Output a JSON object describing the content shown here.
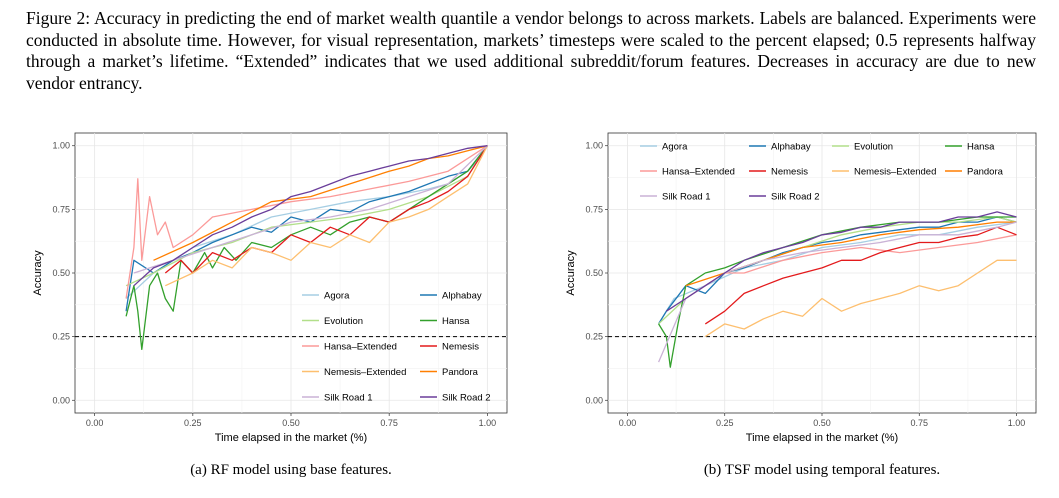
{
  "caption": "Figure 2: Accuracy in predicting the end of market wealth quantile a vendor belongs to across markets. Labels are balanced. Experiments were conducted in absolute time. However, for visual representation, markets’ timesteps were scaled to the percent elapsed; 0.5 represents halfway through a market’s lifetime. “Extended” indicates that we used additional subreddit/forum features. Decreases in accuracy are due to new vendor entrancy.",
  "colors": {
    "Agora": "#a6cee3",
    "Alphabay": "#1f78b4",
    "Evolution": "#b2df8a",
    "Hansa": "#33a02c",
    "Hansa–Extended": "#fb9a99",
    "Nemesis": "#e31a1c",
    "Nemesis–Extended": "#fdbf6f",
    "Pandora": "#ff7f00",
    "Silk Road 1": "#cab2d6",
    "Silk Road 2": "#6a3d9a"
  },
  "chart_data": [
    {
      "type": "line",
      "subcaption": "(a) RF model using base features.",
      "xlabel": "Time elapsed in the market (%)",
      "ylabel": "Accuracy",
      "xlim": [
        0,
        1
      ],
      "ylim": [
        0,
        1
      ],
      "xticks": [
        "0.00",
        "0.25",
        "0.50",
        "0.75",
        "1.00"
      ],
      "yticks": [
        "0.00",
        "0.25",
        "0.50",
        "0.75",
        "1.00"
      ],
      "grid": true,
      "reference_line": {
        "y": 0.25,
        "style": "dashed"
      },
      "legend_position": "bottom-right",
      "legend": [
        "Agora",
        "Alphabay",
        "Evolution",
        "Hansa",
        "Hansa–Extended",
        "Nemesis",
        "Nemesis–Extended",
        "Pandora",
        "Silk Road 1",
        "Silk Road 2"
      ],
      "series": [
        {
          "name": "Agora",
          "x": [
            0.08,
            0.15,
            0.25,
            0.35,
            0.45,
            0.55,
            0.65,
            0.75,
            0.85,
            0.9,
            0.95,
            0.98,
            1.0
          ],
          "y": [
            0.4,
            0.5,
            0.6,
            0.65,
            0.72,
            0.75,
            0.78,
            0.8,
            0.83,
            0.85,
            0.9,
            0.95,
            1.0
          ]
        },
        {
          "name": "Alphabay",
          "x": [
            0.08,
            0.1,
            0.15,
            0.2,
            0.25,
            0.3,
            0.35,
            0.4,
            0.45,
            0.5,
            0.55,
            0.6,
            0.65,
            0.7,
            0.75,
            0.8,
            0.85,
            0.9,
            0.95,
            1.0
          ],
          "y": [
            0.35,
            0.55,
            0.5,
            0.55,
            0.58,
            0.62,
            0.65,
            0.68,
            0.66,
            0.72,
            0.7,
            0.75,
            0.74,
            0.78,
            0.8,
            0.82,
            0.85,
            0.88,
            0.9,
            1.0
          ]
        },
        {
          "name": "Evolution",
          "x": [
            0.08,
            0.15,
            0.25,
            0.35,
            0.45,
            0.55,
            0.65,
            0.75,
            0.85,
            0.95,
            1.0
          ],
          "y": [
            0.45,
            0.5,
            0.58,
            0.62,
            0.68,
            0.7,
            0.72,
            0.75,
            0.8,
            0.88,
            1.0
          ]
        },
        {
          "name": "Hansa",
          "x": [
            0.08,
            0.1,
            0.11,
            0.12,
            0.14,
            0.16,
            0.18,
            0.2,
            0.22,
            0.25,
            0.28,
            0.3,
            0.33,
            0.36,
            0.4,
            0.45,
            0.5,
            0.55,
            0.6,
            0.65,
            0.7,
            0.75,
            0.8,
            0.85,
            0.9,
            0.95,
            1.0
          ],
          "y": [
            0.33,
            0.45,
            0.35,
            0.2,
            0.45,
            0.5,
            0.4,
            0.35,
            0.55,
            0.5,
            0.58,
            0.52,
            0.6,
            0.55,
            0.62,
            0.6,
            0.65,
            0.68,
            0.65,
            0.7,
            0.72,
            0.7,
            0.75,
            0.8,
            0.85,
            0.9,
            1.0
          ]
        },
        {
          "name": "Hansa–Extended",
          "x": [
            0.08,
            0.1,
            0.11,
            0.12,
            0.14,
            0.16,
            0.18,
            0.2,
            0.25,
            0.3,
            0.4,
            0.5,
            0.6,
            0.7,
            0.8,
            0.9,
            1.0
          ],
          "y": [
            0.4,
            0.6,
            0.87,
            0.55,
            0.8,
            0.65,
            0.7,
            0.6,
            0.65,
            0.72,
            0.75,
            0.78,
            0.8,
            0.83,
            0.86,
            0.9,
            1.0
          ]
        },
        {
          "name": "Nemesis",
          "x": [
            0.18,
            0.22,
            0.25,
            0.3,
            0.35,
            0.4,
            0.45,
            0.5,
            0.55,
            0.6,
            0.65,
            0.7,
            0.75,
            0.8,
            0.85,
            0.9,
            0.95,
            1.0
          ],
          "y": [
            0.5,
            0.55,
            0.5,
            0.58,
            0.55,
            0.6,
            0.58,
            0.65,
            0.62,
            0.68,
            0.65,
            0.72,
            0.7,
            0.75,
            0.78,
            0.82,
            0.88,
            1.0
          ]
        },
        {
          "name": "Nemesis–Extended",
          "x": [
            0.18,
            0.25,
            0.3,
            0.35,
            0.4,
            0.45,
            0.5,
            0.55,
            0.6,
            0.65,
            0.7,
            0.75,
            0.8,
            0.85,
            0.9,
            0.95,
            1.0
          ],
          "y": [
            0.45,
            0.5,
            0.55,
            0.52,
            0.6,
            0.58,
            0.55,
            0.62,
            0.6,
            0.65,
            0.62,
            0.7,
            0.72,
            0.75,
            0.8,
            0.85,
            1.0
          ]
        },
        {
          "name": "Pandora",
          "x": [
            0.15,
            0.25,
            0.35,
            0.45,
            0.55,
            0.65,
            0.75,
            0.8,
            0.85,
            0.9,
            0.95,
            1.0
          ],
          "y": [
            0.55,
            0.62,
            0.7,
            0.78,
            0.8,
            0.85,
            0.9,
            0.92,
            0.95,
            0.96,
            0.98,
            1.0
          ]
        },
        {
          "name": "Silk Road 1",
          "x": [
            0.1,
            0.2,
            0.3,
            0.4,
            0.5,
            0.6,
            0.7,
            0.8,
            0.9,
            1.0
          ],
          "y": [
            0.5,
            0.55,
            0.6,
            0.65,
            0.7,
            0.72,
            0.75,
            0.8,
            0.85,
            1.0
          ]
        },
        {
          "name": "Silk Road 2",
          "x": [
            0.1,
            0.15,
            0.2,
            0.25,
            0.3,
            0.35,
            0.4,
            0.45,
            0.5,
            0.55,
            0.6,
            0.65,
            0.7,
            0.75,
            0.8,
            0.85,
            0.9,
            0.95,
            1.0
          ],
          "y": [
            0.45,
            0.52,
            0.55,
            0.6,
            0.65,
            0.68,
            0.72,
            0.75,
            0.8,
            0.82,
            0.85,
            0.88,
            0.9,
            0.92,
            0.94,
            0.95,
            0.97,
            0.99,
            1.0
          ]
        }
      ]
    },
    {
      "type": "line",
      "subcaption": "(b) TSF model using temporal features.",
      "xlabel": "Time elapsed in the market (%)",
      "ylabel": "Accuracy",
      "xlim": [
        0,
        1
      ],
      "ylim": [
        0,
        1
      ],
      "xticks": [
        "0.00",
        "0.25",
        "0.50",
        "0.75",
        "1.00"
      ],
      "yticks": [
        "0.00",
        "0.25",
        "0.50",
        "0.75",
        "1.00"
      ],
      "grid": true,
      "reference_line": {
        "y": 0.25,
        "style": "dashed"
      },
      "legend_position": "top",
      "legend": [
        "Agora",
        "Alphabay",
        "Evolution",
        "Hansa",
        "Hansa–Extended",
        "Nemesis",
        "Nemesis–Extended",
        "Pandora",
        "Silk Road 1",
        "Silk Road 2"
      ],
      "series": [
        {
          "name": "Agora",
          "x": [
            0.08,
            0.12,
            0.2,
            0.3,
            0.4,
            0.5,
            0.6,
            0.7,
            0.8,
            0.9,
            1.0
          ],
          "y": [
            0.3,
            0.4,
            0.45,
            0.52,
            0.55,
            0.6,
            0.62,
            0.65,
            0.65,
            0.68,
            0.7
          ]
        },
        {
          "name": "Alphabay",
          "x": [
            0.08,
            0.1,
            0.15,
            0.2,
            0.25,
            0.3,
            0.35,
            0.4,
            0.45,
            0.5,
            0.55,
            0.6,
            0.65,
            0.7,
            0.75,
            0.8,
            0.85,
            0.9,
            0.95,
            1.0
          ],
          "y": [
            0.3,
            0.35,
            0.45,
            0.42,
            0.5,
            0.52,
            0.55,
            0.58,
            0.6,
            0.62,
            0.63,
            0.65,
            0.66,
            0.67,
            0.68,
            0.68,
            0.7,
            0.7,
            0.72,
            0.7
          ]
        },
        {
          "name": "Evolution",
          "x": [
            0.08,
            0.15,
            0.25,
            0.35,
            0.45,
            0.55,
            0.65,
            0.75,
            0.85,
            0.95,
            1.0
          ],
          "y": [
            0.3,
            0.4,
            0.5,
            0.55,
            0.6,
            0.65,
            0.68,
            0.7,
            0.7,
            0.72,
            0.7
          ]
        },
        {
          "name": "Hansa",
          "x": [
            0.08,
            0.1,
            0.11,
            0.13,
            0.15,
            0.2,
            0.25,
            0.3,
            0.4,
            0.5,
            0.6,
            0.7,
            0.8,
            0.9,
            1.0
          ],
          "y": [
            0.3,
            0.25,
            0.13,
            0.3,
            0.45,
            0.5,
            0.52,
            0.55,
            0.6,
            0.65,
            0.68,
            0.7,
            0.7,
            0.72,
            0.72
          ]
        },
        {
          "name": "Hansa–Extended",
          "x": [
            0.15,
            0.2,
            0.25,
            0.3,
            0.4,
            0.5,
            0.6,
            0.7,
            0.8,
            0.9,
            1.0
          ],
          "y": [
            0.4,
            0.45,
            0.5,
            0.5,
            0.55,
            0.58,
            0.6,
            0.58,
            0.6,
            0.62,
            0.65
          ]
        },
        {
          "name": "Nemesis",
          "x": [
            0.2,
            0.25,
            0.3,
            0.35,
            0.4,
            0.45,
            0.5,
            0.55,
            0.6,
            0.65,
            0.7,
            0.75,
            0.8,
            0.85,
            0.9,
            0.95,
            1.0
          ],
          "y": [
            0.3,
            0.35,
            0.42,
            0.45,
            0.48,
            0.5,
            0.52,
            0.55,
            0.55,
            0.58,
            0.6,
            0.62,
            0.62,
            0.64,
            0.65,
            0.68,
            0.65
          ]
        },
        {
          "name": "Nemesis–Extended",
          "x": [
            0.2,
            0.25,
            0.3,
            0.35,
            0.4,
            0.45,
            0.5,
            0.55,
            0.6,
            0.65,
            0.7,
            0.75,
            0.8,
            0.85,
            0.9,
            0.95,
            1.0
          ],
          "y": [
            0.25,
            0.3,
            0.28,
            0.32,
            0.35,
            0.33,
            0.4,
            0.35,
            0.38,
            0.4,
            0.42,
            0.45,
            0.43,
            0.45,
            0.5,
            0.55,
            0.55
          ]
        },
        {
          "name": "Pandora",
          "x": [
            0.15,
            0.25,
            0.35,
            0.45,
            0.55,
            0.65,
            0.75,
            0.85,
            0.95,
            1.0
          ],
          "y": [
            0.45,
            0.5,
            0.55,
            0.6,
            0.62,
            0.65,
            0.67,
            0.68,
            0.7,
            0.7
          ]
        },
        {
          "name": "Silk Road 1",
          "x": [
            0.08,
            0.15,
            0.25,
            0.35,
            0.45,
            0.55,
            0.65,
            0.75,
            0.85,
            0.95,
            1.0
          ],
          "y": [
            0.15,
            0.4,
            0.5,
            0.55,
            0.58,
            0.6,
            0.62,
            0.65,
            0.65,
            0.68,
            0.7
          ]
        },
        {
          "name": "Silk Road 2",
          "x": [
            0.1,
            0.15,
            0.2,
            0.25,
            0.3,
            0.35,
            0.4,
            0.45,
            0.5,
            0.55,
            0.6,
            0.65,
            0.7,
            0.75,
            0.8,
            0.85,
            0.9,
            0.95,
            1.0
          ],
          "y": [
            0.35,
            0.4,
            0.45,
            0.5,
            0.55,
            0.58,
            0.6,
            0.62,
            0.65,
            0.66,
            0.68,
            0.68,
            0.7,
            0.7,
            0.7,
            0.72,
            0.72,
            0.74,
            0.72
          ]
        }
      ]
    }
  ]
}
